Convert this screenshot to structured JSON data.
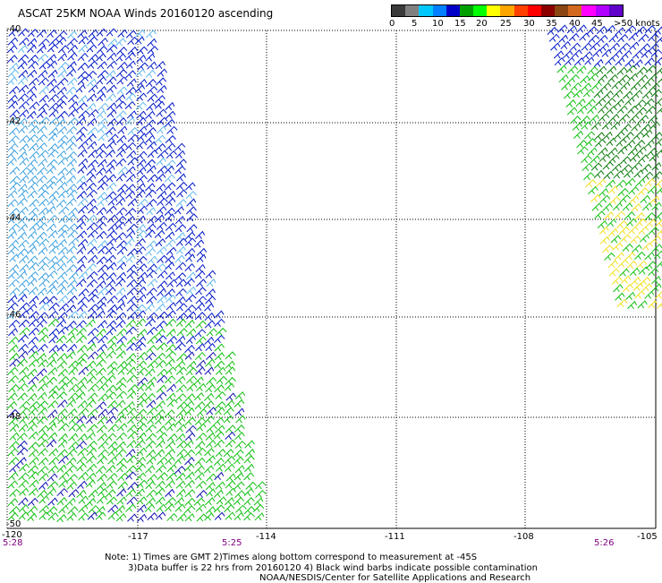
{
  "title": "ASCAT 25KM NOAA Winds 20160120 ascending",
  "colorbar": {
    "colors": [
      "#3a3a3a",
      "#808080",
      "#00c8ff",
      "#0080ff",
      "#0000c8",
      "#00a000",
      "#00ff00",
      "#ffff00",
      "#ffa500",
      "#ff4000",
      "#ff0000",
      "#8b0000",
      "#8b4513",
      "#d2691e",
      "#ff00ff",
      "#b000ff",
      "#6000c8"
    ],
    "labels": [
      "0",
      "5",
      "10",
      "15",
      "20",
      "25",
      "30",
      "35",
      "40",
      "45",
      ">50 knots"
    ]
  },
  "lat_labels": [
    "-40",
    "-42",
    "-44",
    "-46",
    "-48",
    "-50"
  ],
  "lon_labels": [
    "-120",
    "-117",
    "-114",
    "-111",
    "-108",
    "-105"
  ],
  "times": [
    "5:28",
    "5:25",
    "5:26"
  ],
  "notes": [
    "Note: 1) Times are GMT 2)Times along bottom correspond to measurement at -45S",
    "3)Data buffer is 22 hrs from 20160120 4) Black wind barbs indicate possible contamination",
    "NOAA/NESDIS/Center for Satellite Applications and Research"
  ]
}
